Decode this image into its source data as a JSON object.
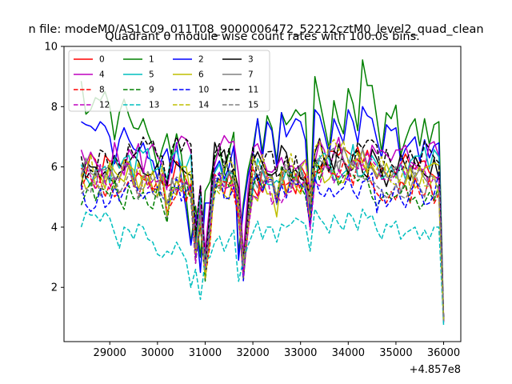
{
  "chart_data": {
    "type": "line",
    "suptitle": "n file: modeM0/AS1C09_011T08_9000006472_52212cztM0_level2_quad_clean",
    "title": "Quadrant 0 module wise count rates with 100.0s bins.",
    "xlabel": "",
    "ylabel": "",
    "x_offset_label": "+4.857e8",
    "xlim": [
      28040,
      36360
    ],
    "ylim": [
      0.2,
      10
    ],
    "xticks": [
      29000,
      30000,
      31000,
      32000,
      33000,
      34000,
      35000,
      36000
    ],
    "xtick_labels": [
      "29000",
      "30000",
      "31000",
      "32000",
      "33000",
      "34000",
      "35000",
      "36000"
    ],
    "yticks": [
      2,
      4,
      6,
      8,
      10
    ],
    "ytick_labels": [
      "2",
      "4",
      "6",
      "8",
      "10"
    ],
    "grid": false,
    "legend_position": "top-left",
    "legend_columns": 4,
    "x": [
      28400,
      28500,
      28600,
      28700,
      28800,
      28900,
      29000,
      29100,
      29200,
      29300,
      29400,
      29500,
      29600,
      29700,
      29800,
      29900,
      30000,
      30100,
      30200,
      30300,
      30400,
      30500,
      30600,
      30700,
      30800,
      30900,
      31000,
      31100,
      31200,
      31300,
      31400,
      31500,
      31600,
      31700,
      31800,
      31900,
      32000,
      32100,
      32200,
      32300,
      32400,
      32500,
      32600,
      32700,
      32800,
      32900,
      33000,
      33100,
      33200,
      33300,
      33400,
      33500,
      33600,
      33700,
      33800,
      33900,
      34000,
      34100,
      34200,
      34300,
      34400,
      34500,
      34600,
      34700,
      34800,
      34900,
      35000,
      35100,
      35200,
      35300,
      35400,
      35500,
      35600,
      35700,
      35800,
      35900,
      36000
    ],
    "series": [
      {
        "name": "0",
        "color": "#ff0000",
        "dash": "solid",
        "base": 5.7,
        "amp": 0.55,
        "seed": 1
      },
      {
        "name": "1",
        "color": "#008000",
        "dash": "solid",
        "base": 7.5,
        "amp": 0.9,
        "seed": 2,
        "values": [
          8.85,
          7.75,
          7.9,
          8.3,
          8.2,
          8.5,
          8.0,
          6.9,
          7.8,
          8.25,
          7.7,
          7.3,
          7.25,
          7.6,
          7.1,
          6.7,
          6.0,
          6.6,
          7.1,
          6.3,
          7.1,
          6.4,
          5.0,
          3.5,
          4.7,
          3.0,
          5.2,
          5.5,
          6.3,
          6.6,
          5.8,
          6.5,
          7.15,
          3.1,
          4.8,
          5.9,
          6.6,
          7.6,
          6.5,
          7.7,
          7.3,
          6.2,
          7.8,
          7.4,
          7.6,
          7.9,
          7.7,
          7.8,
          4.5,
          9.0,
          8.2,
          7.4,
          6.6,
          8.2,
          7.5,
          7.1,
          8.6,
          8.1,
          7.2,
          9.55,
          8.7,
          8.7,
          7.6,
          6.5,
          7.8,
          7.6,
          8.05,
          6.4,
          6.9,
          7.35,
          7.6,
          6.7,
          7.6,
          6.75,
          7.4,
          7.5,
          0.9
        ]
      },
      {
        "name": "2",
        "color": "#0000ff",
        "dash": "solid",
        "base": 6.9,
        "amp": 0.7,
        "seed": 3,
        "values": [
          7.5,
          7.4,
          7.35,
          7.2,
          7.5,
          7.35,
          7.0,
          6.1,
          6.9,
          7.3,
          6.9,
          6.6,
          6.5,
          6.8,
          6.3,
          6.2,
          5.6,
          6.3,
          6.6,
          5.8,
          6.8,
          5.6,
          4.6,
          3.4,
          4.4,
          2.5,
          4.8,
          4.8,
          5.9,
          6.2,
          5.6,
          6.0,
          6.7,
          2.9,
          4.6,
          5.7,
          6.4,
          7.6,
          6.3,
          7.5,
          7.2,
          6.0,
          7.8,
          7.0,
          7.3,
          7.6,
          7.5,
          6.9,
          4.4,
          7.9,
          7.7,
          7.1,
          6.4,
          7.6,
          7.2,
          6.8,
          7.9,
          7.5,
          6.8,
          8.0,
          7.7,
          7.6,
          6.9,
          6.3,
          7.4,
          7.2,
          7.3,
          6.2,
          6.6,
          6.8,
          7.0,
          6.2,
          6.9,
          6.3,
          6.7,
          6.8,
          0.9
        ]
      },
      {
        "name": "3",
        "color": "#000000",
        "dash": "solid",
        "base": 6.1,
        "amp": 0.6,
        "seed": 4
      },
      {
        "name": "4",
        "color": "#bf00bf",
        "dash": "solid",
        "base": 6.3,
        "amp": 0.65,
        "seed": 5
      },
      {
        "name": "5",
        "color": "#00bfbf",
        "dash": "solid",
        "base": 5.9,
        "amp": 0.55,
        "seed": 6
      },
      {
        "name": "6",
        "color": "#bfbf00",
        "dash": "solid",
        "base": 5.5,
        "amp": 0.55,
        "seed": 7
      },
      {
        "name": "7",
        "color": "#808080",
        "dash": "solid",
        "base": 5.6,
        "amp": 0.55,
        "seed": 8
      },
      {
        "name": "8",
        "color": "#ff0000",
        "dash": "dashed",
        "base": 5.4,
        "amp": 0.5,
        "seed": 9
      },
      {
        "name": "9",
        "color": "#008000",
        "dash": "dashed",
        "base": 5.3,
        "amp": 0.5,
        "seed": 10
      },
      {
        "name": "10",
        "color": "#0000ff",
        "dash": "dashed",
        "base": 5.2,
        "amp": 0.55,
        "seed": 11
      },
      {
        "name": "11",
        "color": "#000000",
        "dash": "dashed",
        "base": 6.2,
        "amp": 0.6,
        "seed": 12
      },
      {
        "name": "12",
        "color": "#bf00bf",
        "dash": "dashed",
        "base": 5.5,
        "amp": 0.5,
        "seed": 13
      },
      {
        "name": "13",
        "color": "#00bfbf",
        "dash": "dashed",
        "base": 3.9,
        "amp": 0.4,
        "seed": 14,
        "values": [
          4.0,
          4.5,
          4.4,
          4.4,
          4.2,
          4.5,
          4.3,
          3.8,
          3.3,
          4.0,
          3.9,
          3.6,
          4.1,
          4.0,
          3.6,
          3.5,
          3.1,
          3.0,
          3.2,
          3.1,
          3.5,
          3.2,
          2.9,
          2.0,
          2.6,
          1.6,
          2.9,
          3.0,
          3.5,
          3.7,
          3.2,
          3.6,
          3.9,
          2.2,
          2.9,
          3.4,
          3.8,
          4.2,
          3.6,
          4.0,
          4.0,
          3.5,
          4.1,
          4.0,
          4.1,
          4.3,
          4.2,
          4.1,
          3.2,
          4.6,
          4.3,
          4.1,
          3.8,
          4.4,
          4.1,
          3.9,
          4.5,
          4.3,
          3.9,
          4.6,
          4.3,
          4.4,
          3.9,
          3.6,
          4.1,
          4.0,
          4.2,
          3.6,
          3.8,
          3.9,
          4.0,
          3.6,
          3.9,
          3.6,
          4.0,
          4.0,
          0.75
        ]
      },
      {
        "name": "14",
        "color": "#bfbf00",
        "dash": "dashed",
        "base": 5.8,
        "amp": 0.55,
        "seed": 15
      },
      {
        "name": "15",
        "color": "#808080",
        "dash": "dashed",
        "base": 5.6,
        "amp": 0.5,
        "seed": 16
      }
    ],
    "shared_dips": {
      "30200": 0.85,
      "30800": 0.55,
      "30900": 0.8,
      "31000": 0.45,
      "31100": 0.7,
      "31700": 0.85,
      "31800": 0.45,
      "31900": 0.75,
      "32500": 0.9,
      "33200": 0.8,
      "36000": 0.16
    }
  }
}
